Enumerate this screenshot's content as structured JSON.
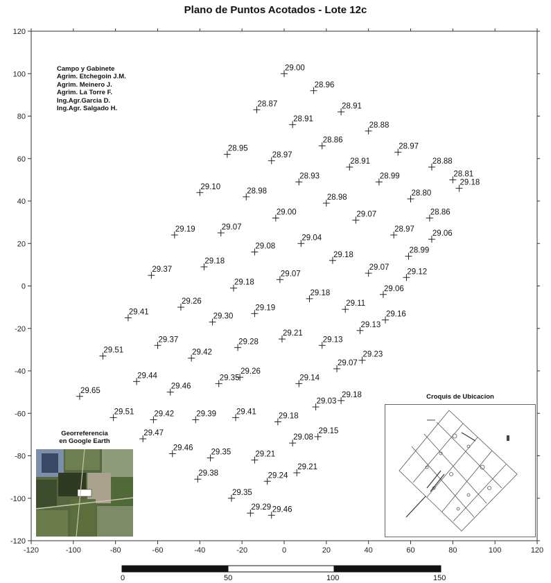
{
  "title": "Plano de Puntos Acotados - Lote 12c",
  "axes": {
    "xlim": [
      -120,
      120
    ],
    "ylim": [
      -120,
      120
    ],
    "x_ticks": [
      -120,
      -100,
      -80,
      -60,
      -40,
      -20,
      0,
      20,
      40,
      60,
      80,
      100,
      120
    ],
    "y_ticks": [
      120,
      100,
      80,
      60,
      40,
      20,
      0,
      -20,
      -40,
      -60,
      -80,
      -100,
      -120
    ]
  },
  "credits": {
    "lines": [
      "Campo y Gabinete",
      "Agrim. Etchegoin J.M.",
      "Agrim. Meinero J.",
      "Agrim. La Torre F.",
      "Ing.Agr.Garcia D.",
      "Ing.Agr. Salgado H."
    ]
  },
  "georef": {
    "title_line1": "Georreferencia",
    "title_line2": "en Google Earth"
  },
  "croquis": {
    "title": "Croquis de Ubicacion"
  },
  "scale_bar": {
    "labels": [
      "0",
      "50",
      "100",
      "150"
    ]
  },
  "chart_data": {
    "type": "scatter",
    "title": "Plano de Puntos Acotados - Lote 12c",
    "xlabel": "",
    "ylabel": "",
    "xlim": [
      -120,
      120
    ],
    "ylim": [
      -120,
      120
    ],
    "points": [
      {
        "x": 0,
        "y": 100,
        "z": "29.00"
      },
      {
        "x": 14,
        "y": 92,
        "z": "28.96"
      },
      {
        "x": -13,
        "y": 83,
        "z": "28.87"
      },
      {
        "x": 27,
        "y": 82,
        "z": "28.91"
      },
      {
        "x": 4,
        "y": 76,
        "z": "28.91"
      },
      {
        "x": 40,
        "y": 73,
        "z": "28.88"
      },
      {
        "x": 18,
        "y": 66,
        "z": "28.86"
      },
      {
        "x": -27,
        "y": 62,
        "z": "28.95"
      },
      {
        "x": 54,
        "y": 63,
        "z": "28.97"
      },
      {
        "x": -6,
        "y": 59,
        "z": "28.97"
      },
      {
        "x": 31,
        "y": 56,
        "z": "28.91"
      },
      {
        "x": 70,
        "y": 56,
        "z": "28.88"
      },
      {
        "x": 80,
        "y": 50,
        "z": "28.81"
      },
      {
        "x": 7,
        "y": 49,
        "z": "28.93"
      },
      {
        "x": 45,
        "y": 49,
        "z": "28.99"
      },
      {
        "x": 83,
        "y": 46,
        "z": "29.18"
      },
      {
        "x": -40,
        "y": 44,
        "z": "29.10"
      },
      {
        "x": -18,
        "y": 42,
        "z": "28.98"
      },
      {
        "x": 60,
        "y": 41,
        "z": "28.80"
      },
      {
        "x": 20,
        "y": 39,
        "z": "28.98"
      },
      {
        "x": -4,
        "y": 32,
        "z": "29.00"
      },
      {
        "x": 34,
        "y": 31,
        "z": "29.07"
      },
      {
        "x": 69,
        "y": 32,
        "z": "28.86"
      },
      {
        "x": -30,
        "y": 25,
        "z": "29.07"
      },
      {
        "x": -52,
        "y": 24,
        "z": "29.19"
      },
      {
        "x": 52,
        "y": 24,
        "z": "28.97"
      },
      {
        "x": 70,
        "y": 22,
        "z": "29.06"
      },
      {
        "x": 8,
        "y": 20,
        "z": "29.04"
      },
      {
        "x": -14,
        "y": 16,
        "z": "29.08"
      },
      {
        "x": 59,
        "y": 14,
        "z": "28.99"
      },
      {
        "x": 23,
        "y": 12,
        "z": "29.18"
      },
      {
        "x": -38,
        "y": 9,
        "z": "29.18"
      },
      {
        "x": -63,
        "y": 5,
        "z": "29.37"
      },
      {
        "x": 40,
        "y": 6,
        "z": "29.07"
      },
      {
        "x": 58,
        "y": 4,
        "z": "29.12"
      },
      {
        "x": -2,
        "y": 3,
        "z": "29.07"
      },
      {
        "x": -24,
        "y": -1,
        "z": "29.18"
      },
      {
        "x": 47,
        "y": -4,
        "z": "29.06"
      },
      {
        "x": 12,
        "y": -6,
        "z": "29.18"
      },
      {
        "x": -49,
        "y": -10,
        "z": "29.26"
      },
      {
        "x": 29,
        "y": -11,
        "z": "29.11"
      },
      {
        "x": -14,
        "y": -13,
        "z": "29.19"
      },
      {
        "x": -74,
        "y": -15,
        "z": "29.41"
      },
      {
        "x": 48,
        "y": -16,
        "z": "29.16"
      },
      {
        "x": -34,
        "y": -17,
        "z": "29.30"
      },
      {
        "x": 36,
        "y": -21,
        "z": "29.13"
      },
      {
        "x": -1,
        "y": -25,
        "z": "29.21"
      },
      {
        "x": -60,
        "y": -28,
        "z": "29.37"
      },
      {
        "x": -22,
        "y": -29,
        "z": "29.28"
      },
      {
        "x": 18,
        "y": -28,
        "z": "29.13"
      },
      {
        "x": -86,
        "y": -33,
        "z": "29.51"
      },
      {
        "x": -44,
        "y": -34,
        "z": "29.42"
      },
      {
        "x": 37,
        "y": -35,
        "z": "29.23"
      },
      {
        "x": 25,
        "y": -39,
        "z": "29.07"
      },
      {
        "x": -21,
        "y": -43,
        "z": "29.26"
      },
      {
        "x": -31,
        "y": -46,
        "z": "29.35"
      },
      {
        "x": -70,
        "y": -45,
        "z": "29.44"
      },
      {
        "x": 7,
        "y": -46,
        "z": "29.14"
      },
      {
        "x": -54,
        "y": -50,
        "z": "29.46"
      },
      {
        "x": -97,
        "y": -52,
        "z": "29.65"
      },
      {
        "x": 27,
        "y": -54,
        "z": "29.18"
      },
      {
        "x": 15,
        "y": -57,
        "z": "29.03"
      },
      {
        "x": -81,
        "y": -62,
        "z": "29.51"
      },
      {
        "x": -62,
        "y": -63,
        "z": "29.42"
      },
      {
        "x": -42,
        "y": -63,
        "z": "29.39"
      },
      {
        "x": -23,
        "y": -62,
        "z": "29.41"
      },
      {
        "x": -3,
        "y": -64,
        "z": "29.18"
      },
      {
        "x": 16,
        "y": -71,
        "z": "29.15"
      },
      {
        "x": -67,
        "y": -72,
        "z": "29.47"
      },
      {
        "x": 4,
        "y": -74,
        "z": "29.08"
      },
      {
        "x": -53,
        "y": -79,
        "z": "29.46"
      },
      {
        "x": -35,
        "y": -81,
        "z": "29.35"
      },
      {
        "x": -14,
        "y": -82,
        "z": "29.21"
      },
      {
        "x": 6,
        "y": -88,
        "z": "29.21"
      },
      {
        "x": -8,
        "y": -92,
        "z": "29.24"
      },
      {
        "x": -41,
        "y": -91,
        "z": "29.38"
      },
      {
        "x": -25,
        "y": -100,
        "z": "29.35"
      },
      {
        "x": -16,
        "y": -107,
        "z": "29.29"
      },
      {
        "x": -6,
        "y": -108,
        "z": "29.46"
      }
    ]
  }
}
